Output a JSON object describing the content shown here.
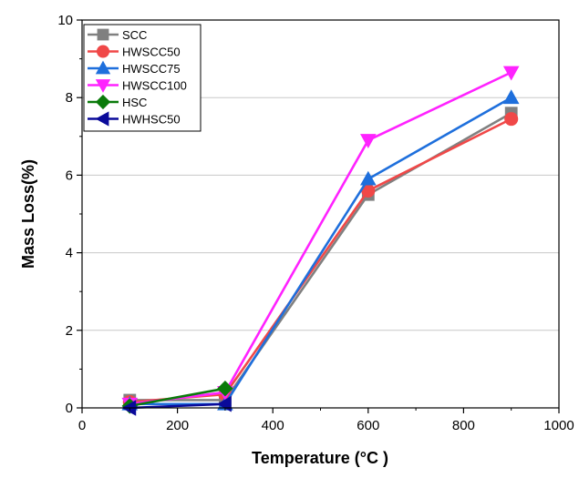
{
  "chart_data": {
    "type": "line",
    "title": "",
    "xlabel": "Temperature (°C )",
    "ylabel": "Mass Loss(%)",
    "xlim": [
      0,
      1000
    ],
    "ylim": [
      0,
      10
    ],
    "x_ticks": [
      0,
      200,
      400,
      600,
      800,
      1000
    ],
    "y_ticks": [
      0,
      2,
      4,
      6,
      8,
      10
    ],
    "grid": "horizontal",
    "legend_position": "top-left",
    "series": [
      {
        "name": "SCC",
        "color": "#808080",
        "marker": "square",
        "x": [
          100,
          300,
          600,
          900
        ],
        "y": [
          0.2,
          0.2,
          5.5,
          7.6
        ]
      },
      {
        "name": "HWSCC50",
        "color": "#f04848",
        "marker": "circle",
        "x": [
          100,
          300,
          600,
          900
        ],
        "y": [
          0.15,
          0.35,
          5.6,
          7.45
        ]
      },
      {
        "name": "HWSCC75",
        "color": "#1e6fdc",
        "marker": "triangle-up",
        "x": [
          100,
          300,
          600,
          900
        ],
        "y": [
          0.1,
          0.1,
          5.9,
          8.0
        ]
      },
      {
        "name": "HWSCC100",
        "color": "#ff22ff",
        "marker": "triangle-down",
        "x": [
          100,
          300,
          600,
          900
        ],
        "y": [
          0.1,
          0.4,
          6.9,
          8.65
        ]
      },
      {
        "name": "HSC",
        "color": "#0a7a0a",
        "marker": "diamond",
        "x": [
          100,
          300
        ],
        "y": [
          0.05,
          0.5
        ]
      },
      {
        "name": "HWHSC50",
        "color": "#0a0a9a",
        "marker": "triangle-left",
        "x": [
          100,
          300
        ],
        "y": [
          0.0,
          0.1
        ]
      }
    ]
  }
}
